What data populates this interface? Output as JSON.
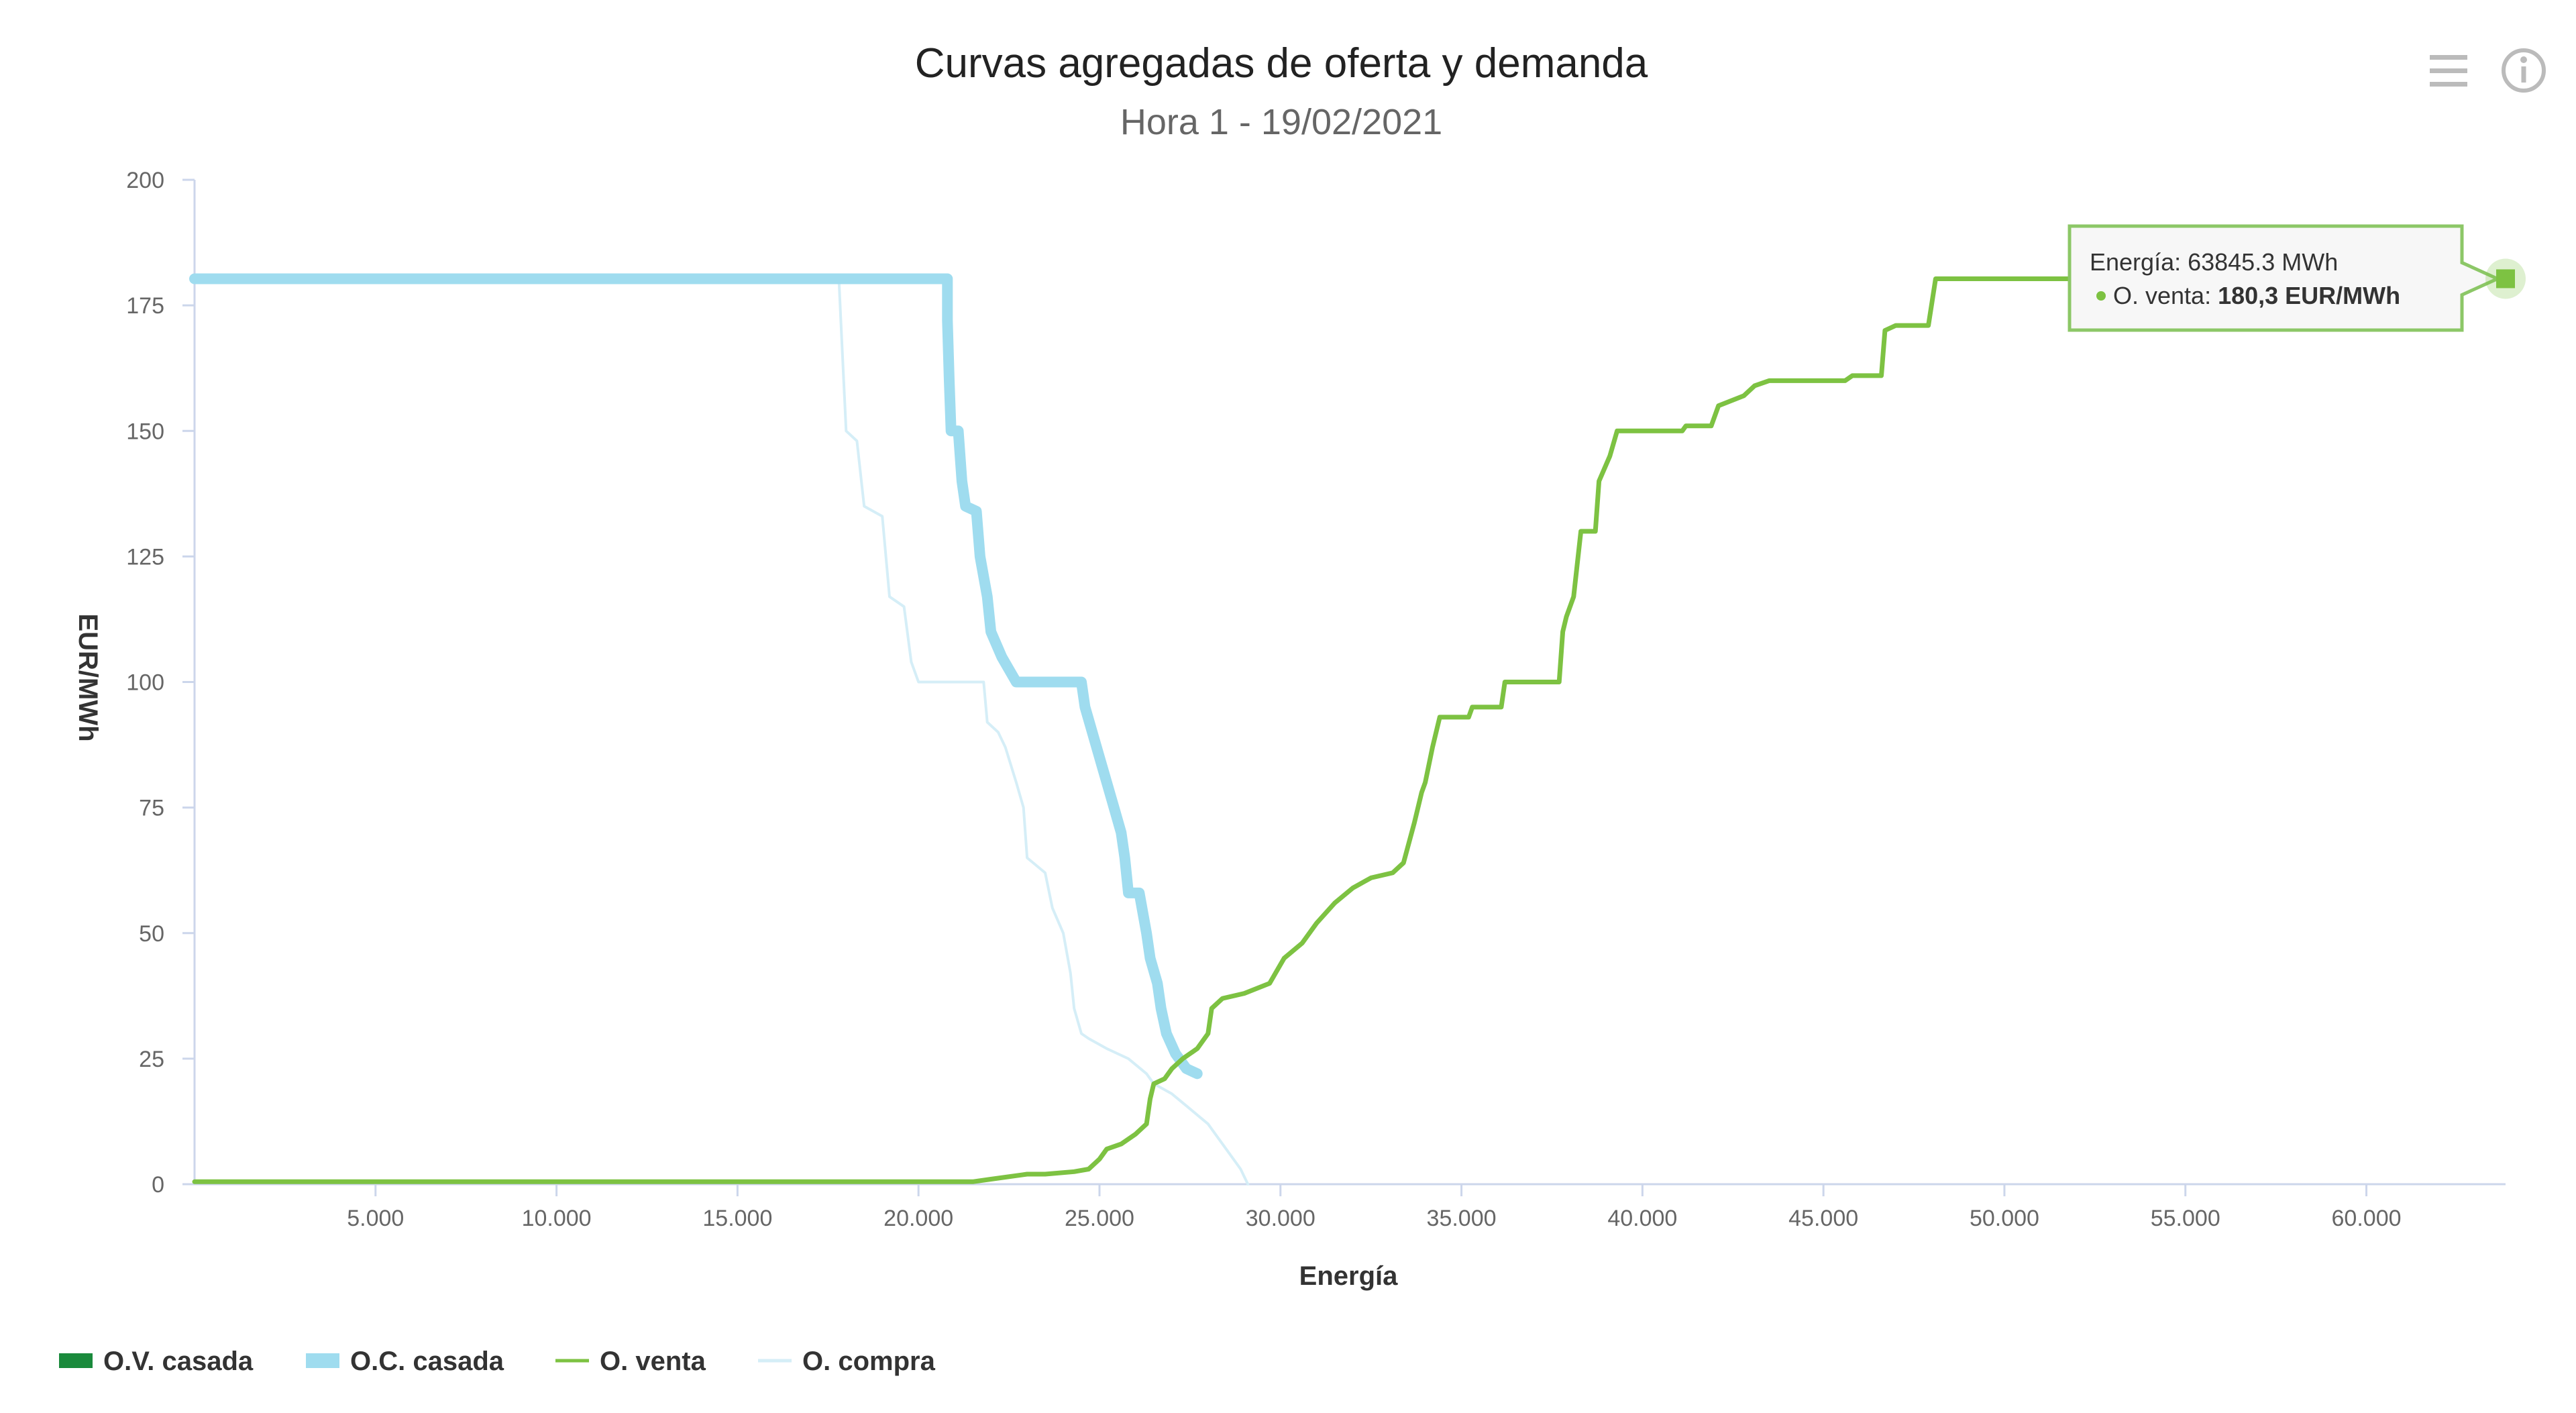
{
  "chart_data": {
    "type": "line",
    "title": "Curvas agregadas de oferta y demanda",
    "subtitle": "Hora 1 - 19/02/2021",
    "xlabel": "Energía",
    "ylabel": "EUR/MWh",
    "xlim": [
      0,
      63845
    ],
    "ylim": [
      0,
      200
    ],
    "x_ticks": [
      5000,
      10000,
      15000,
      20000,
      25000,
      30000,
      35000,
      40000,
      45000,
      50000,
      55000,
      60000
    ],
    "x_tick_labels": [
      "5.000",
      "10.000",
      "15.000",
      "20.000",
      "25.000",
      "30.000",
      "35.000",
      "40.000",
      "45.000",
      "50.000",
      "55.000",
      "60.000"
    ],
    "y_ticks": [
      0,
      25,
      50,
      75,
      100,
      125,
      150,
      175,
      200
    ],
    "y_tick_labels": [
      "0",
      "25",
      "50",
      "75",
      "100",
      "125",
      "150",
      "175",
      "200"
    ],
    "grid": false,
    "legend_position": "bottom-left",
    "series": [
      {
        "name": "O.V. casada",
        "color": "#1a8a3c",
        "style": "bar",
        "points": []
      },
      {
        "name": "O.C. casada",
        "color": "#9fdcef",
        "style": "thick-line",
        "points": [
          [
            0,
            180.3
          ],
          [
            20800,
            180.3
          ],
          [
            20800,
            172
          ],
          [
            20850,
            160
          ],
          [
            20900,
            150
          ],
          [
            21100,
            150
          ],
          [
            21200,
            140
          ],
          [
            21300,
            135
          ],
          [
            21600,
            134
          ],
          [
            21700,
            125
          ],
          [
            21900,
            117
          ],
          [
            22000,
            110
          ],
          [
            22300,
            105
          ],
          [
            22700,
            100
          ],
          [
            23100,
            100
          ],
          [
            23200,
            100
          ],
          [
            23700,
            100
          ],
          [
            24500,
            100
          ],
          [
            24600,
            95
          ],
          [
            24800,
            90
          ],
          [
            25000,
            85
          ],
          [
            25200,
            80
          ],
          [
            25400,
            75
          ],
          [
            25600,
            70
          ],
          [
            25700,
            65
          ],
          [
            25800,
            58
          ],
          [
            26100,
            58
          ],
          [
            26300,
            50
          ],
          [
            26400,
            45
          ],
          [
            26600,
            40
          ],
          [
            26700,
            35
          ],
          [
            26850,
            30
          ],
          [
            27100,
            26
          ],
          [
            27400,
            23
          ],
          [
            27700,
            22
          ]
        ]
      },
      {
        "name": "O. venta",
        "color": "#7dc242",
        "style": "line",
        "points": [
          [
            0,
            0.5
          ],
          [
            21500,
            0.5
          ],
          [
            22000,
            1
          ],
          [
            23000,
            2
          ],
          [
            23500,
            2
          ],
          [
            24300,
            2.5
          ],
          [
            24700,
            3
          ],
          [
            25000,
            5
          ],
          [
            25200,
            7
          ],
          [
            25600,
            8
          ],
          [
            26000,
            10
          ],
          [
            26300,
            12
          ],
          [
            26400,
            17
          ],
          [
            26500,
            20
          ],
          [
            26800,
            21
          ],
          [
            27000,
            23
          ],
          [
            27300,
            25
          ],
          [
            27700,
            27
          ],
          [
            28000,
            30
          ],
          [
            28100,
            35
          ],
          [
            28400,
            37
          ],
          [
            29000,
            38
          ],
          [
            29700,
            40
          ],
          [
            30100,
            45
          ],
          [
            30600,
            48
          ],
          [
            31000,
            52
          ],
          [
            31500,
            56
          ],
          [
            32000,
            59
          ],
          [
            32500,
            61
          ],
          [
            33100,
            62
          ],
          [
            33400,
            64
          ],
          [
            33700,
            72
          ],
          [
            33900,
            78
          ],
          [
            34000,
            80
          ],
          [
            34200,
            87
          ],
          [
            34400,
            93
          ],
          [
            35200,
            93
          ],
          [
            35300,
            95
          ],
          [
            36100,
            95
          ],
          [
            36200,
            100
          ],
          [
            37700,
            100
          ],
          [
            37800,
            110
          ],
          [
            37900,
            113
          ],
          [
            38100,
            117
          ],
          [
            38300,
            130
          ],
          [
            38700,
            130
          ],
          [
            38800,
            140
          ],
          [
            39100,
            145
          ],
          [
            39300,
            150
          ],
          [
            41100,
            150
          ],
          [
            41200,
            151
          ],
          [
            41900,
            151
          ],
          [
            42100,
            155
          ],
          [
            42800,
            157
          ],
          [
            43100,
            159
          ],
          [
            43500,
            160
          ],
          [
            45600,
            160
          ],
          [
            45800,
            161
          ],
          [
            46600,
            161
          ],
          [
            46700,
            170
          ],
          [
            47000,
            171
          ],
          [
            47900,
            171
          ],
          [
            48100,
            180.3
          ],
          [
            63845,
            180.3
          ]
        ]
      },
      {
        "name": "O. compra",
        "color": "#d5eef7",
        "style": "thin-line",
        "points": [
          [
            0,
            180.3
          ],
          [
            17800,
            180.3
          ],
          [
            17900,
            165
          ],
          [
            18000,
            150
          ],
          [
            18300,
            148
          ],
          [
            18500,
            135
          ],
          [
            19000,
            133
          ],
          [
            19200,
            117
          ],
          [
            19600,
            115
          ],
          [
            19800,
            104
          ],
          [
            20000,
            100
          ],
          [
            21000,
            100
          ],
          [
            21800,
            100
          ],
          [
            21900,
            92
          ],
          [
            22200,
            90
          ],
          [
            22400,
            87
          ],
          [
            22700,
            80
          ],
          [
            22900,
            75
          ],
          [
            23000,
            65
          ],
          [
            23500,
            62
          ],
          [
            23700,
            55
          ],
          [
            24000,
            50
          ],
          [
            24200,
            42
          ],
          [
            24300,
            35
          ],
          [
            24500,
            30
          ],
          [
            24700,
            29
          ],
          [
            25200,
            27
          ],
          [
            25800,
            25
          ],
          [
            26300,
            22
          ],
          [
            26500,
            20
          ],
          [
            27000,
            18
          ],
          [
            27500,
            15
          ],
          [
            28000,
            12
          ],
          [
            28200,
            10
          ],
          [
            28500,
            7
          ],
          [
            28900,
            3
          ],
          [
            29100,
            0
          ]
        ]
      }
    ],
    "tooltip": {
      "energy_line": "Energía: 63845.3 MWh",
      "series_label": "O. venta: ",
      "series_value": "180,3 EUR/MWh"
    }
  },
  "toolbar": {
    "menu_icon": "hamburger-menu-icon",
    "info_icon": "info-circle-icon"
  }
}
